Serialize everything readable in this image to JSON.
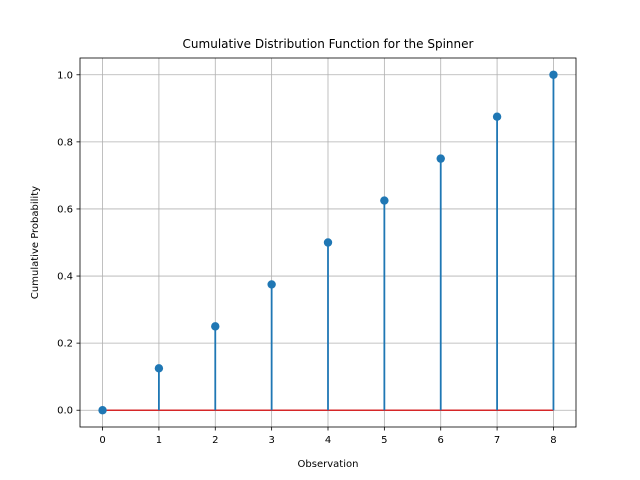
{
  "chart_data": {
    "type": "stem",
    "title": "Cumulative Distribution Function for the Spinner",
    "xlabel": "Observation",
    "ylabel": "Cumulative Probability",
    "x": [
      0,
      1,
      2,
      3,
      4,
      5,
      6,
      7,
      8
    ],
    "y": [
      0.0,
      0.125,
      0.25,
      0.375,
      0.5,
      0.625,
      0.75,
      0.875,
      1.0
    ],
    "xlim": [
      -0.4,
      8.4
    ],
    "ylim": [
      -0.05,
      1.05
    ],
    "xticks": [
      0,
      1,
      2,
      3,
      4,
      5,
      6,
      7,
      8
    ],
    "xtick_labels": [
      "0",
      "1",
      "2",
      "3",
      "4",
      "5",
      "6",
      "7",
      "8"
    ],
    "yticks": [
      0.0,
      0.2,
      0.4,
      0.6,
      0.8,
      1.0
    ],
    "ytick_labels": [
      "0.0",
      "0.2",
      "0.4",
      "0.6",
      "0.8",
      "1.0"
    ],
    "grid": true,
    "colors": {
      "stem": "#1f77b4",
      "marker": "#1f77b4",
      "baseline": "#d62728",
      "grid": "#b0b0b0",
      "axis": "#000000"
    }
  }
}
